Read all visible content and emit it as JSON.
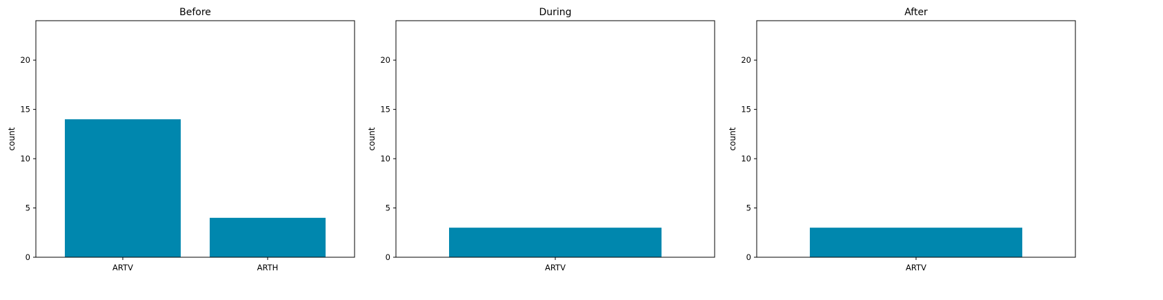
{
  "chart_data": [
    {
      "type": "bar",
      "title": "Before",
      "xlabel": "",
      "ylabel": "count",
      "categories": [
        "ARTV",
        "ARTH"
      ],
      "values": [
        14,
        4
      ],
      "ylim": [
        0,
        24
      ],
      "yticks": [
        0,
        5,
        10,
        15,
        20
      ],
      "grid": false,
      "bar_color": "#0087ae"
    },
    {
      "type": "bar",
      "title": "During",
      "xlabel": "",
      "ylabel": "count",
      "categories": [
        "ARTV"
      ],
      "values": [
        3
      ],
      "ylim": [
        0,
        24
      ],
      "yticks": [
        0,
        5,
        10,
        15,
        20
      ],
      "grid": false,
      "bar_color": "#0087ae"
    },
    {
      "type": "bar",
      "title": "After",
      "xlabel": "",
      "ylabel": "count",
      "categories": [
        "ARTV"
      ],
      "values": [
        3
      ],
      "ylim": [
        0,
        24
      ],
      "yticks": [
        0,
        5,
        10,
        15,
        20
      ],
      "grid": false,
      "bar_color": "#0087ae"
    }
  ]
}
